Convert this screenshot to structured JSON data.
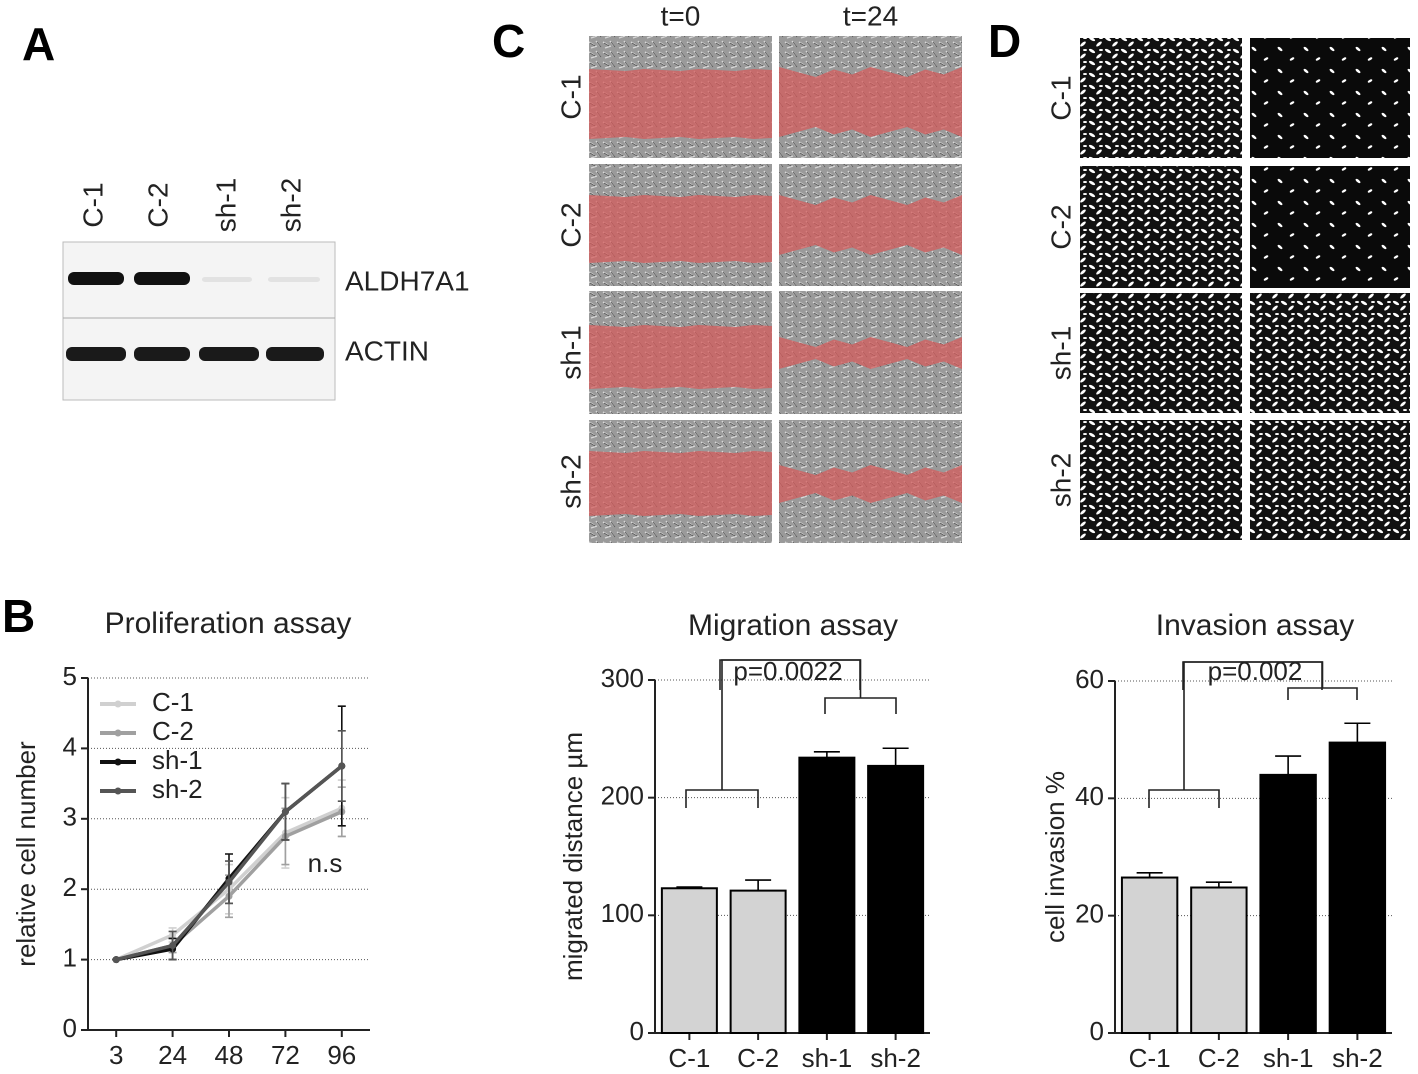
{
  "panel_labels": [
    "A",
    "B",
    "C",
    "D"
  ],
  "western_blot": {
    "lanes": [
      "C-1",
      "C-2",
      "sh-1",
      "sh-2"
    ],
    "bands": [
      "ALDH7A1",
      "ACTIN"
    ]
  },
  "scratch_images": {
    "timepoints": [
      "t=0",
      "t=24"
    ],
    "rows": [
      "C-1",
      "C-2",
      "sh-1",
      "sh-2"
    ]
  },
  "invasion_images": {
    "rows": [
      "C-1",
      "C-2",
      "sh-1",
      "sh-2"
    ]
  },
  "chart_data": [
    {
      "type": "line",
      "title": "Proliferation assay",
      "y_label": "relative cell number",
      "categories": [
        "3",
        "24",
        "48",
        "72",
        "96"
      ],
      "series": [
        {
          "name": "C-1",
          "color": "#d0d0d0",
          "values": [
            1,
            1.35,
            2.0,
            2.8,
            3.15
          ],
          "errors": [
            0,
            0.1,
            0.35,
            0.5,
            0.4
          ]
        },
        {
          "name": "C-2",
          "color": "#a0a0a0",
          "values": [
            1,
            1.2,
            1.9,
            2.75,
            3.1
          ],
          "errors": [
            0,
            0.1,
            0.3,
            0.4,
            0.35
          ]
        },
        {
          "name": "sh-1",
          "color": "#111111",
          "values": [
            1,
            1.15,
            2.15,
            3.1,
            3.75
          ],
          "errors": [
            0,
            0.15,
            0.35,
            0.4,
            0.85
          ]
        },
        {
          "name": "sh-2",
          "color": "#555555",
          "values": [
            1,
            1.2,
            2.1,
            3.1,
            3.75
          ],
          "errors": [
            0,
            0.2,
            0.3,
            0.4,
            0.5
          ]
        }
      ],
      "annotation": "n.s",
      "ylim": [
        0,
        5
      ],
      "yticks": [
        0,
        1,
        2,
        3,
        4,
        5
      ],
      "grid": true,
      "legend": "upper left"
    },
    {
      "type": "bar",
      "title": "Migration assay",
      "y_label": "migrated distance µm",
      "categories": [
        "C-1",
        "C-2",
        "sh-1",
        "sh-2"
      ],
      "values": [
        123,
        121,
        234,
        227
      ],
      "errors": [
        1,
        9,
        5,
        15
      ],
      "colors": [
        "#d3d3d3",
        "#d3d3d3",
        "#000000",
        "#000000"
      ],
      "annotation": "p=0.0022",
      "ylim": [
        0,
        300
      ],
      "yticks": [
        0,
        100,
        200,
        300
      ],
      "grid": true
    },
    {
      "type": "bar",
      "title": "Invasion assay",
      "y_label": "cell invasion %",
      "categories": [
        "C-1",
        "C-2",
        "sh-1",
        "sh-2"
      ],
      "values": [
        26.5,
        24.8,
        44,
        49.5
      ],
      "errors": [
        0.8,
        0.9,
        3.2,
        3.3
      ],
      "colors": [
        "#d3d3d3",
        "#d3d3d3",
        "#000000",
        "#000000"
      ],
      "annotation": "p=0.002",
      "ylim": [
        0,
        60
      ],
      "yticks": [
        0,
        20,
        40,
        60
      ],
      "grid": true
    }
  ]
}
